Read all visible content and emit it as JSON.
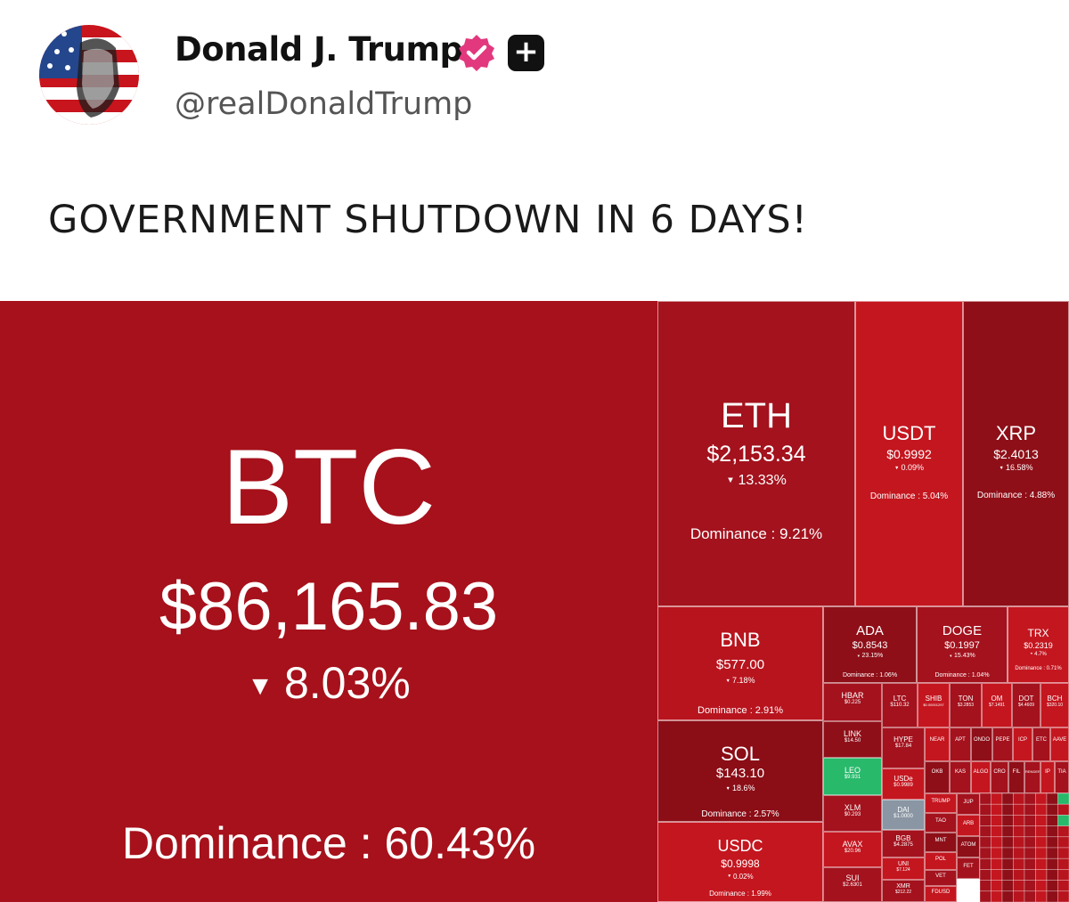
{
  "post": {
    "display_name": "Donald J. Trump",
    "handle": "@realDonaldTrump",
    "text": "GOVERNMENT SHUTDOWN IN 6 DAYS!"
  },
  "icons": {
    "verified": "verified-badge-icon",
    "plus": "plus-icon"
  },
  "colors": {
    "deep_red": "#a6111b",
    "red": "#c4161f",
    "dark_red": "#8b0d16",
    "green": "#28b96b",
    "gray": "#8a96a3"
  },
  "heatmap": {
    "btc": {
      "symbol": "BTC",
      "price": "$86,165.83",
      "change": "8.03%",
      "dominance": "Dominance : 60.43%"
    },
    "eth": {
      "symbol": "ETH",
      "price": "$2,153.34",
      "change": "13.33%",
      "dominance": "Dominance : 9.21%"
    },
    "usdt": {
      "symbol": "USDT",
      "price": "$0.9992",
      "change": "0.09%",
      "dominance": "Dominance : 5.04%"
    },
    "xrp": {
      "symbol": "XRP",
      "price": "$2.4013",
      "change": "16.58%",
      "dominance": "Dominance : 4.88%"
    },
    "bnb": {
      "symbol": "BNB",
      "price": "$577.00",
      "change": "7.18%",
      "dominance": "Dominance : 2.91%"
    },
    "sol": {
      "symbol": "SOL",
      "price": "$143.10",
      "change": "18.6%",
      "dominance": "Dominance : 2.57%"
    },
    "usdc": {
      "symbol": "USDC",
      "price": "$0.9998",
      "change": "0.02%",
      "dominance": "Dominance : 1.99%"
    },
    "ada": {
      "symbol": "ADA",
      "price": "$0.8543",
      "change": "23.15%",
      "dominance": "Dominance : 1.06%"
    },
    "doge": {
      "symbol": "DOGE",
      "price": "$0.1997",
      "change": "15.43%",
      "dominance": "Dominance : 1.04%"
    },
    "trx": {
      "symbol": "TRX",
      "price": "$0.2319",
      "change": "4.7%",
      "dominance": "Dominance : 0.71%"
    },
    "small": {
      "hbar": {
        "symbol": "HBAR",
        "price": "$0.225"
      },
      "link": {
        "symbol": "LINK",
        "price": "$14.50"
      },
      "leo": {
        "symbol": "LEO",
        "price": "$9.931"
      },
      "xlm": {
        "symbol": "XLM",
        "price": "$0.293"
      },
      "avax": {
        "symbol": "AVAX",
        "price": "$20.96"
      },
      "sui": {
        "symbol": "SUI",
        "price": "$2.6301"
      },
      "ltc": {
        "symbol": "LTC",
        "price": "$110.32"
      },
      "shib": {
        "symbol": "SHIB",
        "price": "$0.00001297"
      },
      "ton": {
        "symbol": "TON",
        "price": "$3.2853"
      },
      "om": {
        "symbol": "OM",
        "price": "$7.1491"
      },
      "dot": {
        "symbol": "DOT",
        "price": "$4.4609"
      },
      "bch": {
        "symbol": "BCH",
        "price": "$320.10"
      },
      "hype": {
        "symbol": "HYPE",
        "price": "$17.84"
      },
      "usde": {
        "symbol": "USDe",
        "price": "$0.9989"
      },
      "dai": {
        "symbol": "DAI",
        "price": "$1.0000"
      },
      "bgb": {
        "symbol": "BGB",
        "price": "$4.2875"
      },
      "uni": {
        "symbol": "UNI",
        "price": "$7.124"
      },
      "xmr": {
        "symbol": "XMR",
        "price": "$212.22"
      },
      "near": {
        "symbol": "NEAR"
      },
      "apt": {
        "symbol": "APT"
      },
      "ondo": {
        "symbol": "ONDO"
      },
      "pepe": {
        "symbol": "PEPE"
      },
      "icp": {
        "symbol": "ICP"
      },
      "etc": {
        "symbol": "ETC"
      },
      "aave": {
        "symbol": "AAVE"
      },
      "okb": {
        "symbol": "OKB"
      },
      "kas": {
        "symbol": "KAS"
      },
      "algo": {
        "symbol": "ALGO"
      },
      "cro": {
        "symbol": "CRO"
      },
      "fil": {
        "symbol": "FIL"
      },
      "render": {
        "symbol": "RENDER"
      },
      "ip": {
        "symbol": "IP"
      },
      "tia": {
        "symbol": "TIA"
      },
      "trump": {
        "symbol": "TRUMP"
      },
      "tao": {
        "symbol": "TAO"
      },
      "jup": {
        "symbol": "JUP"
      },
      "arb": {
        "symbol": "ARB"
      },
      "mnt": {
        "symbol": "MNT"
      },
      "pol": {
        "symbol": "POL"
      },
      "vet": {
        "symbol": "VET"
      },
      "atom": {
        "symbol": "ATOM"
      },
      "fet": {
        "symbol": "FET"
      },
      "fdusd": {
        "symbol": "FDUSD"
      }
    }
  }
}
